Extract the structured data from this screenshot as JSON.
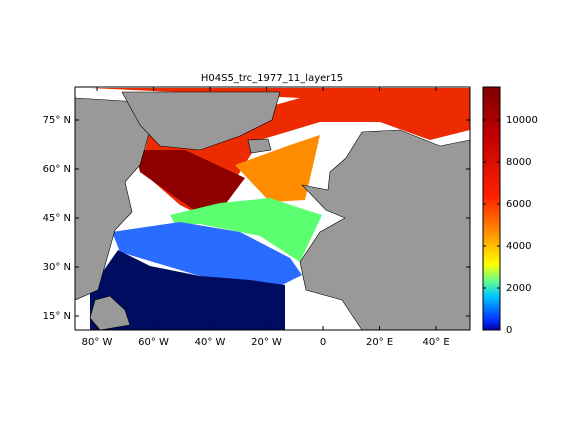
{
  "title": "H04S5_trc_1977_11_layer15",
  "map": {
    "xlim": [
      -87.8,
      52
    ],
    "ylim": [
      10.7,
      85.1
    ],
    "xticks": [
      {
        "value": -80,
        "label": "80° W"
      },
      {
        "value": -60,
        "label": "60° W"
      },
      {
        "value": -40,
        "label": "40° W"
      },
      {
        "value": -20,
        "label": "20° W"
      },
      0,
      {
        "value": 20,
        "label": "20° E"
      },
      {
        "value": 40,
        "label": "40° E"
      }
    ],
    "yticks": [
      {
        "value": 15,
        "label": "15° N"
      },
      {
        "value": 30,
        "label": "30° N"
      },
      {
        "value": 45,
        "label": "45° N"
      },
      {
        "value": 60,
        "label": "60° N"
      },
      {
        "value": 75,
        "label": "75° N"
      }
    ]
  },
  "colorbar": {
    "lim": [
      0,
      11570
    ],
    "ticks": [
      0,
      2000,
      4000,
      6000,
      8000,
      10000
    ]
  }
}
